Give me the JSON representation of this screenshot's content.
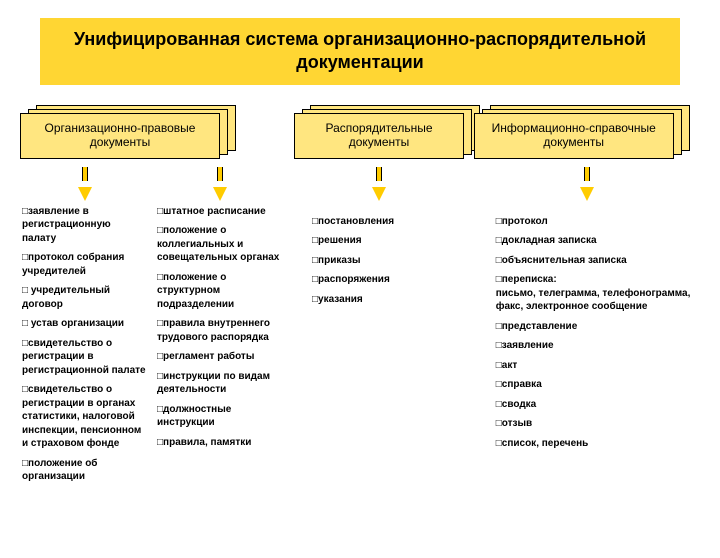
{
  "colors": {
    "title_bg": "#ffd633",
    "card_bg": "#ffe680",
    "arrow_fill": "#ffcc00",
    "text": "#000000"
  },
  "title": "Унифицированная система организационно-распорядительной документации",
  "columns": [
    {
      "header": "Организационно-правовые документы",
      "lists": [
        [
          "заявление в регистрационную палату",
          "протокол собрания учредителей",
          " учредительный договор",
          " устав организации",
          "свидетельство о регистрации в регистрационной палате",
          "свидетельство о регистрации в органах статистики, налоговой инспекции, пенсионном и страховом фонде",
          "положение об организации"
        ],
        [
          "штатное расписание",
          "положение о коллегиальных и совещательных органах",
          "положение о структурном подразделении",
          "правила внутреннего трудового распорядка",
          "регламент работы",
          "инструкции по видам деятельности",
          "должностные инструкции",
          "правила, памятки"
        ]
      ]
    },
    {
      "header": "Распорядительные документы",
      "lists": [
        [
          "постановления",
          "решения",
          "приказы",
          "распоряжения",
          "указания"
        ]
      ]
    },
    {
      "header": "Информационно-справочные документы",
      "lists": [
        [
          "протокол",
          "докладная записка",
          "объяснительная записка",
          "переписка:\nписьмо, телеграмма, телефонограмма, факс, электронное сообщение",
          "представление",
          "заявление",
          "акт",
          "справка",
          "сводка",
          "отзыв",
          "список, перечень"
        ]
      ]
    }
  ]
}
